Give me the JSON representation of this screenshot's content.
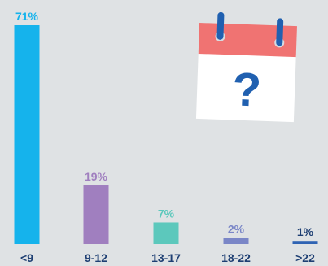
{
  "chart_data": {
    "type": "bar",
    "categories": [
      "<9",
      "9-12",
      "13-17",
      "18-22",
      ">22"
    ],
    "values": [
      71,
      19,
      7,
      2,
      1
    ],
    "value_labels": [
      "71%",
      "19%",
      "7%",
      "2%",
      "1%"
    ],
    "ylim": [
      0,
      71
    ],
    "grid": false,
    "colors": [
      "#15b3ec",
      "#a07fbf",
      "#5cc8bc",
      "#7a86c7",
      "#2f63b3"
    ],
    "value_label_colors": [
      "#15b3ec",
      "#a07fbf",
      "#5cc8bc",
      "#7a86c7",
      "#1e3f73"
    ]
  },
  "illustration": {
    "name": "calendar-question-icon",
    "symbol": "?",
    "colors": {
      "header": "#f07372",
      "page": "#ffffff",
      "rings": "#2060b0",
      "symbol": "#2060b0"
    }
  }
}
